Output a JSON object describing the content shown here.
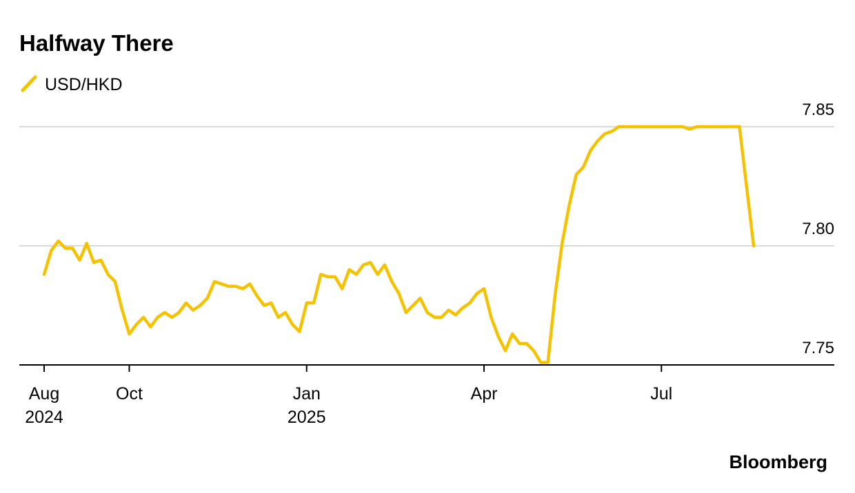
{
  "chart_data": {
    "type": "line",
    "title": "Halfway There",
    "source": "Bloomberg",
    "categories": [
      "Aug 2024",
      null,
      null,
      null,
      null,
      null,
      null,
      null,
      null,
      null,
      null,
      null,
      "Oct",
      null,
      null,
      null,
      null,
      null,
      null,
      null,
      null,
      null,
      null,
      null,
      null,
      null,
      null,
      null,
      null,
      null,
      null,
      null,
      null,
      null,
      null,
      null,
      null,
      "Jan 2025",
      null,
      null,
      null,
      null,
      null,
      null,
      null,
      null,
      null,
      null,
      null,
      null,
      null,
      null,
      null,
      null,
      null,
      null,
      null,
      null,
      null,
      null,
      null,
      null,
      "Apr",
      null,
      null,
      null,
      null,
      null,
      null,
      null,
      null,
      null,
      null,
      null,
      null,
      null,
      null,
      null,
      null,
      null,
      null,
      null,
      null,
      null,
      null,
      null,
      null,
      "Jul",
      null,
      null,
      null,
      null,
      null,
      null,
      null,
      null,
      null,
      null,
      null,
      null,
      null
    ],
    "series": [
      {
        "name": "USD/HKD",
        "color": "#f6c200",
        "values": [
          7.788,
          7.798,
          7.802,
          7.799,
          7.799,
          7.794,
          7.801,
          7.793,
          7.794,
          7.788,
          7.785,
          7.773,
          7.763,
          7.767,
          7.77,
          7.766,
          7.77,
          7.772,
          7.77,
          7.772,
          7.776,
          7.773,
          7.775,
          7.778,
          7.785,
          7.784,
          7.783,
          7.783,
          7.782,
          7.784,
          7.779,
          7.775,
          7.776,
          7.77,
          7.772,
          7.767,
          7.764,
          7.776,
          7.776,
          7.788,
          7.787,
          7.787,
          7.782,
          7.79,
          7.788,
          7.792,
          7.793,
          7.788,
          7.792,
          7.785,
          7.78,
          7.772,
          7.775,
          7.778,
          7.772,
          7.77,
          7.77,
          7.773,
          7.771,
          7.774,
          7.776,
          7.78,
          7.782,
          7.77,
          7.762,
          7.756,
          7.763,
          7.759,
          7.759,
          7.756,
          7.751,
          7.751,
          7.779,
          7.801,
          7.817,
          7.83,
          7.833,
          7.84,
          7.844,
          7.847,
          7.848,
          7.85,
          7.85,
          7.85,
          7.85,
          7.85,
          7.85,
          7.85,
          7.85,
          7.85,
          7.85,
          7.849,
          7.85,
          7.85,
          7.85,
          7.85,
          7.85,
          7.85,
          7.85,
          7.825,
          7.8
        ]
      }
    ],
    "ylim": [
      7.75,
      7.85
    ],
    "yticks": [
      7.75,
      {
        "value": 7.8,
        "label": "7.80"
      },
      7.85
    ],
    "grid": true
  }
}
